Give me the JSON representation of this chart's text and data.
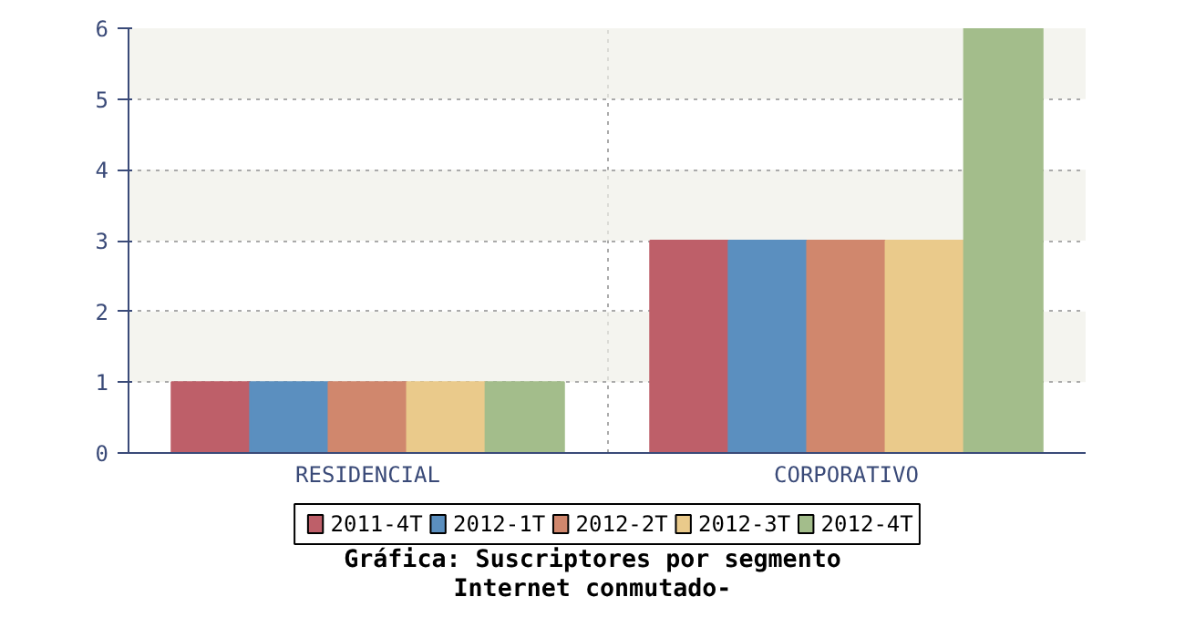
{
  "chart_data": {
    "type": "bar",
    "title": "Gráfica: Suscriptores por segmento",
    "subtitle": "Internet conmutado-",
    "categories": [
      "RESIDENCIAL",
      "CORPORATIVO"
    ],
    "series": [
      {
        "name": "2011-4T",
        "color": "#be5f69",
        "values": [
          1,
          3
        ]
      },
      {
        "name": "2012-1T",
        "color": "#5b8fbf",
        "values": [
          1,
          3
        ]
      },
      {
        "name": "2012-2T",
        "color": "#d0876d",
        "values": [
          1,
          3
        ]
      },
      {
        "name": "2012-3T",
        "color": "#eaca8b",
        "values": [
          1,
          3
        ]
      },
      {
        "name": "2012-4T",
        "color": "#a3bd8b",
        "values": [
          1,
          6
        ]
      }
    ],
    "ylim": [
      0,
      6
    ],
    "yticks": [
      0,
      1,
      2,
      3,
      4,
      5,
      6
    ],
    "grid": true,
    "legend": "bottom"
  }
}
